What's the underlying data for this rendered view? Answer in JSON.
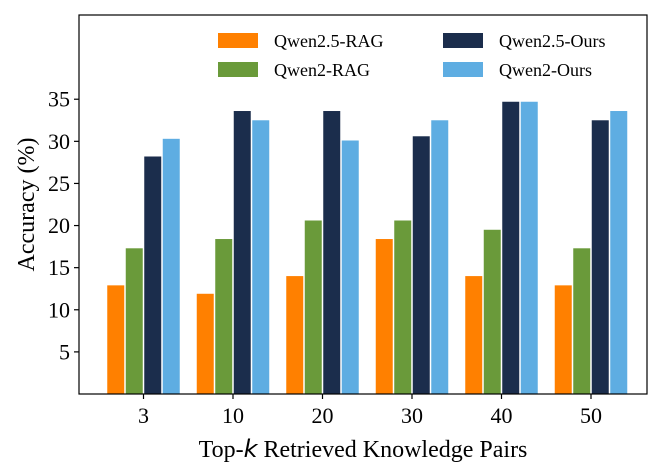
{
  "chart_data": {
    "type": "bar",
    "title": "",
    "xlabel_parts": [
      "Top-",
      "k",
      " Retrieved Knowledge Pairs"
    ],
    "ylabel": "Accuracy (%)",
    "categories": [
      "3",
      "10",
      "20",
      "30",
      "40",
      "50"
    ],
    "ylim": [
      0,
      45
    ],
    "yticks": [
      5,
      10,
      15,
      20,
      25,
      30,
      35
    ],
    "grid": false,
    "legend_position": "top",
    "series": [
      {
        "name": "Qwen2.5-RAG",
        "color": "#ff8000",
        "values": [
          12.9,
          11.9,
          14.0,
          18.4,
          14.0,
          12.9
        ]
      },
      {
        "name": "Qwen2-RAG",
        "color": "#6a9a3a",
        "values": [
          17.3,
          18.4,
          20.6,
          20.6,
          19.5,
          17.3
        ]
      },
      {
        "name": "Qwen2.5-Ours",
        "color": "#1b2d4c",
        "values": [
          28.2,
          33.6,
          33.6,
          30.6,
          34.7,
          32.5
        ]
      },
      {
        "name": "Qwen2-Ours",
        "color": "#5eade2",
        "values": [
          30.3,
          32.5,
          30.1,
          32.5,
          34.7,
          33.6
        ]
      }
    ]
  }
}
